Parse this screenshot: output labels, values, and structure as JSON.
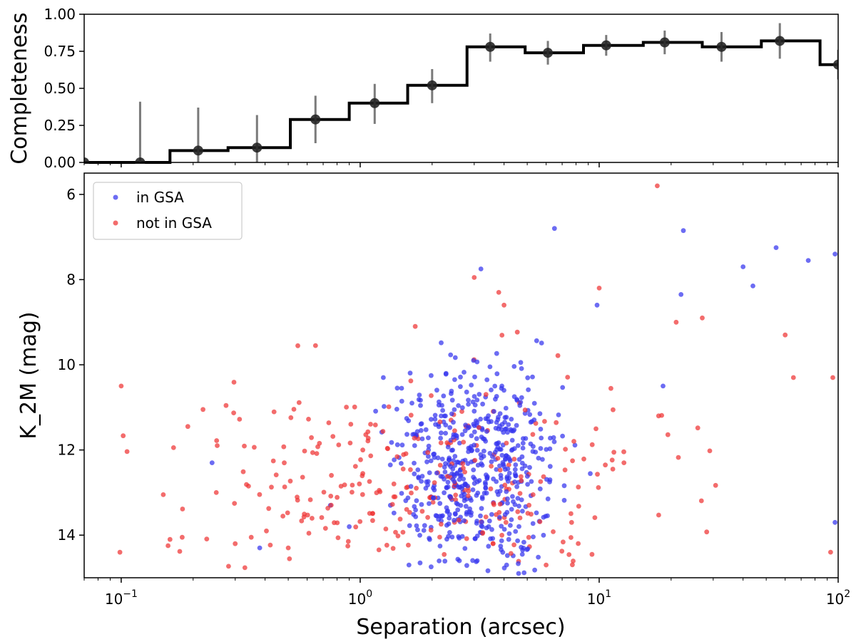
{
  "chart_data": [
    {
      "type": "step",
      "name": "completeness-panel",
      "xscale": "log",
      "xlim": [
        0.07,
        100
      ],
      "ylim": [
        0,
        1
      ],
      "ylabel": "Completeness",
      "yticks": [
        "0.00",
        "0.25",
        "0.50",
        "0.75",
        "1.00"
      ],
      "ytick_values": [
        0,
        0.25,
        0.5,
        0.75,
        1.0
      ],
      "bin_edges": [
        0.05,
        0.09,
        0.16,
        0.28,
        0.51,
        0.9,
        1.58,
        2.8,
        4.9,
        8.6,
        15.3,
        27,
        47.7,
        84,
        148
      ],
      "centers": [
        0.07,
        0.12,
        0.21,
        0.37,
        0.65,
        1.15,
        2.0,
        3.5,
        6.1,
        10.7,
        18.8,
        32.5,
        57,
        100
      ],
      "values": [
        0.0,
        0.0,
        0.08,
        0.1,
        0.29,
        0.4,
        0.52,
        0.78,
        0.74,
        0.79,
        0.81,
        0.78,
        0.82,
        0.66
      ],
      "err_low": [
        0.0,
        0.0,
        0.08,
        0.1,
        0.16,
        0.14,
        0.12,
        0.1,
        0.08,
        0.07,
        0.08,
        0.1,
        0.12,
        0.1
      ],
      "err_high": [
        0.0,
        0.41,
        0.29,
        0.22,
        0.16,
        0.13,
        0.11,
        0.09,
        0.08,
        0.07,
        0.08,
        0.1,
        0.12,
        0.1
      ]
    },
    {
      "type": "scatter",
      "name": "magnitude-panel",
      "xscale": "log",
      "xlim": [
        0.07,
        100
      ],
      "ylim": [
        15,
        5.5
      ],
      "xlabel": "Separation (arcsec)",
      "ylabel": "K_2M (mag)",
      "xtick_bases": [
        "10",
        "10",
        "10",
        "10"
      ],
      "xtick_exponents": [
        "−1",
        "0",
        "1",
        "2"
      ],
      "xtick_values": [
        0.1,
        1,
        10,
        100
      ],
      "yticks": [
        "6",
        "8",
        "10",
        "12",
        "14"
      ],
      "ytick_values": [
        6,
        8,
        10,
        12,
        14
      ],
      "legend_position": "upper-left",
      "series": [
        {
          "name": "in GSA",
          "color": "#3333ee",
          "notable_points": [
            [
              6.5,
              6.8
            ],
            [
              22.5,
              6.85
            ],
            [
              3.2,
              7.75
            ],
            [
              55,
              7.25
            ],
            [
              97,
              7.4
            ],
            [
              75,
              7.55
            ],
            [
              40,
              7.7
            ],
            [
              44,
              8.15
            ],
            [
              9.8,
              8.6
            ],
            [
              22,
              8.35
            ],
            [
              18.5,
              10.5
            ],
            [
              1.25,
              10.3
            ],
            [
              0.24,
              12.3
            ],
            [
              0.38,
              14.3
            ],
            [
              1.6,
              14.7
            ],
            [
              2.6,
              14.6
            ],
            [
              4.1,
              14.7
            ],
            [
              4.6,
              14.9
            ],
            [
              0.75,
              13.3
            ],
            [
              0.9,
              13.8
            ],
            [
              97,
              13.7
            ]
          ],
          "cluster_count": 560,
          "cluster_log_x": [
            0.25,
            0.1,
            0.45
          ],
          "cluster_log_x_range": [
            -0.1,
            2.0
          ],
          "cluster_mag": [
            12.3,
            1.25
          ],
          "cluster_mag_range": [
            9.3,
            14.9
          ]
        },
        {
          "name": "not in GSA",
          "color": "#ee3333",
          "notable_points": [
            [
              0.1,
              10.5
            ],
            [
              0.22,
              11.05
            ],
            [
              0.19,
              11.45
            ],
            [
              0.15,
              13.05
            ],
            [
              0.16,
              14.1
            ],
            [
              0.18,
              14.05
            ],
            [
              0.65,
              9.55
            ],
            [
              3.0,
              7.95
            ],
            [
              3.8,
              8.3
            ],
            [
              4.0,
              8.6
            ],
            [
              10.0,
              8.2
            ],
            [
              17.5,
              5.8
            ],
            [
              1.7,
              9.1
            ],
            [
              0.35,
              14.05
            ],
            [
              0.5,
              14.3
            ],
            [
              6.0,
              14.7
            ],
            [
              3.6,
              14.2
            ],
            [
              0.25,
              13.0
            ],
            [
              0.3,
              14.2
            ],
            [
              95,
              10.3
            ],
            [
              93,
              14.4
            ],
            [
              60,
              9.3
            ],
            [
              65,
              10.3
            ],
            [
              27,
              8.9
            ],
            [
              21,
              9.0
            ]
          ],
          "cluster_count": 290,
          "cluster_log_x": [
            0.0,
            0.45,
            0.55
          ],
          "cluster_log_x_range": [
            -1.1,
            2.0
          ],
          "cluster_mag": [
            12.6,
            1.25
          ],
          "cluster_mag_range": [
            9.0,
            14.8
          ]
        }
      ]
    }
  ]
}
